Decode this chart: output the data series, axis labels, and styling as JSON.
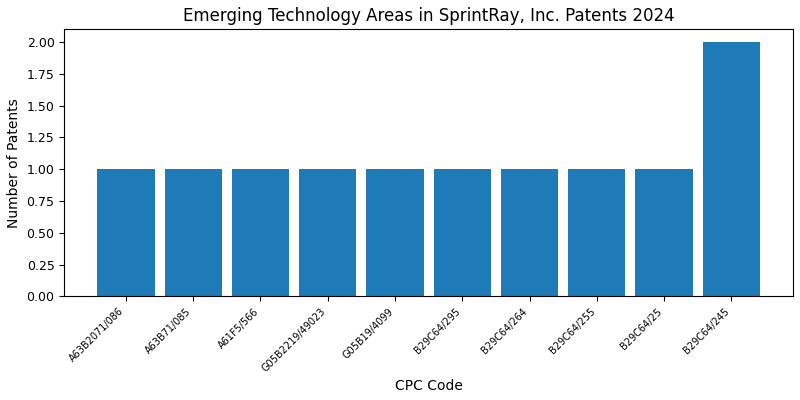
{
  "title": "Emerging Technology Areas in SprintRay, Inc. Patents 2024",
  "xlabel": "CPC Code",
  "ylabel": "Number of Patents",
  "categories": [
    "A63B2071/086",
    "A63B71/085",
    "A61F5/566",
    "G05B2219/49023",
    "G05B19/4099",
    "B29C64/295",
    "B29C64/264",
    "B29C64/255",
    "B29C64/25",
    "B29C64/245"
  ],
  "values": [
    1,
    1,
    1,
    1,
    1,
    1,
    1,
    1,
    1,
    2
  ],
  "bar_color": "#1f7ab8",
  "figsize": [
    8.0,
    4.0
  ],
  "dpi": 100,
  "ylim": [
    0,
    2.1
  ],
  "yticks": [
    0.0,
    0.25,
    0.5,
    0.75,
    1.0,
    1.25,
    1.5,
    1.75,
    2.0
  ],
  "title_fontsize": 12,
  "xlabel_fontsize": 10,
  "ylabel_fontsize": 10,
  "xtick_fontsize": 7,
  "ytick_fontsize": 9,
  "bar_width": 0.85
}
